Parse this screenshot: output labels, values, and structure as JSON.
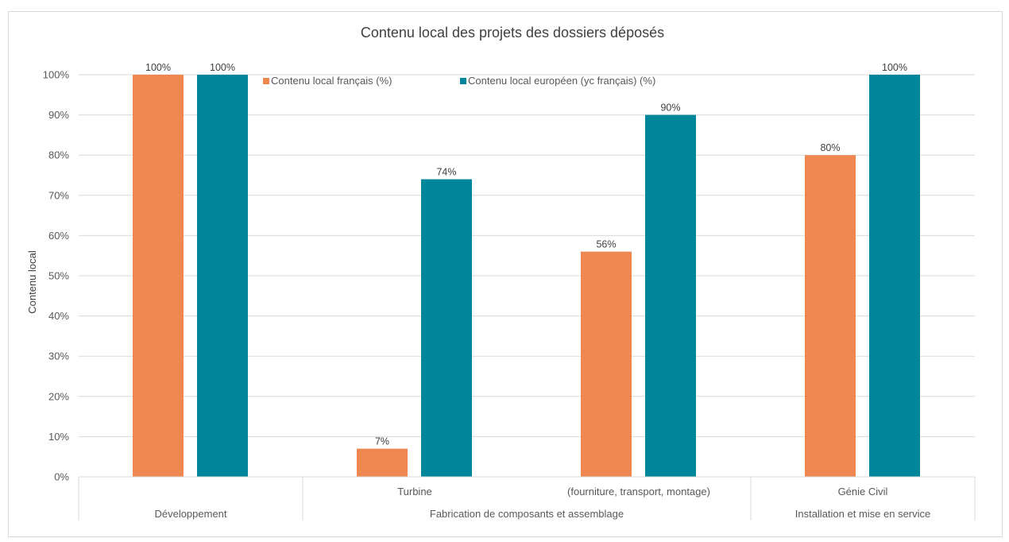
{
  "chart_data": {
    "type": "bar",
    "title": "Contenu local des projets des dossiers déposés",
    "ylabel": "Contenu local",
    "ylim": [
      0,
      100
    ],
    "yticks": [
      "0%",
      "10%",
      "20%",
      "30%",
      "40%",
      "50%",
      "60%",
      "70%",
      "80%",
      "90%",
      "100%"
    ],
    "grid": true,
    "legend_position": "top",
    "categories": [
      "",
      "Turbine",
      "(fourniture, transport, montage)",
      "Génie Civil"
    ],
    "groups": [
      "Développement",
      "Fabrication de composants et assemblage",
      "Installation et mise en service"
    ],
    "series": [
      {
        "name": "Contenu local français (%)",
        "color": "#ee8750",
        "values": [
          100,
          7,
          56,
          80
        ],
        "labels": [
          "100%",
          "7%",
          "56%",
          "80%"
        ]
      },
      {
        "name": "Contenu local européen (yc français) (%)",
        "color": "#00869a",
        "values": [
          100,
          74,
          90,
          100
        ],
        "labels": [
          "100%",
          "74%",
          "90%",
          "100%"
        ]
      }
    ]
  }
}
